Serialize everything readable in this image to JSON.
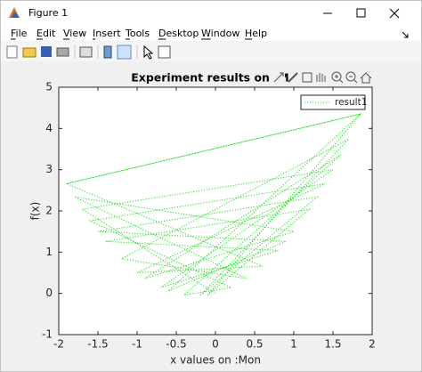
{
  "window": {
    "title": "Figure 1"
  },
  "menu": [
    "File",
    "Edit",
    "View",
    "Insert",
    "Tools",
    "Desktop",
    "Window",
    "Help"
  ],
  "chart_data": {
    "type": "line",
    "title": "Experiment results on :M",
    "x_label": "x values on :Mon",
    "y_label": "f(x)",
    "x": [
      -1.9,
      1.85,
      -0.6,
      0.9,
      -1.5,
      1.3,
      -0.2,
      1.7,
      -1.2,
      0.4,
      -1.8,
      1.0,
      -0.9,
      1.6,
      -0.4,
      0.2,
      -1.6,
      1.4,
      -1.0,
      0.6,
      -1.9,
      1.85,
      -0.1,
      1.2,
      -1.4,
      0.8,
      -0.7,
      1.5,
      -1.7,
      0.0
    ],
    "series": [
      {
        "name": "result1",
        "color": "#22dd22",
        "values": [
          2.66,
          4.35,
          0.06,
          1.26,
          1.5,
          2.34,
          -0.06,
          3.74,
          0.84,
          0.36,
          2.34,
          1.5,
          0.36,
          3.36,
          -0.04,
          0.14,
          1.76,
          2.66,
          0.5,
          0.66,
          2.66,
          4.35,
          -0.04,
          2.04,
          1.26,
          1.04,
          0.14,
          3.0,
          2.04,
          0
        ]
      }
    ],
    "line_style": "dotted",
    "xlim": [
      -2,
      2
    ],
    "ylim": [
      -1,
      5
    ],
    "xticks": [
      -2,
      -1.5,
      -1,
      -0.5,
      0,
      0.5,
      1,
      1.5,
      2
    ],
    "yticks": [
      -1,
      0,
      1,
      2,
      3,
      4,
      5
    ],
    "legend": "upper right"
  }
}
